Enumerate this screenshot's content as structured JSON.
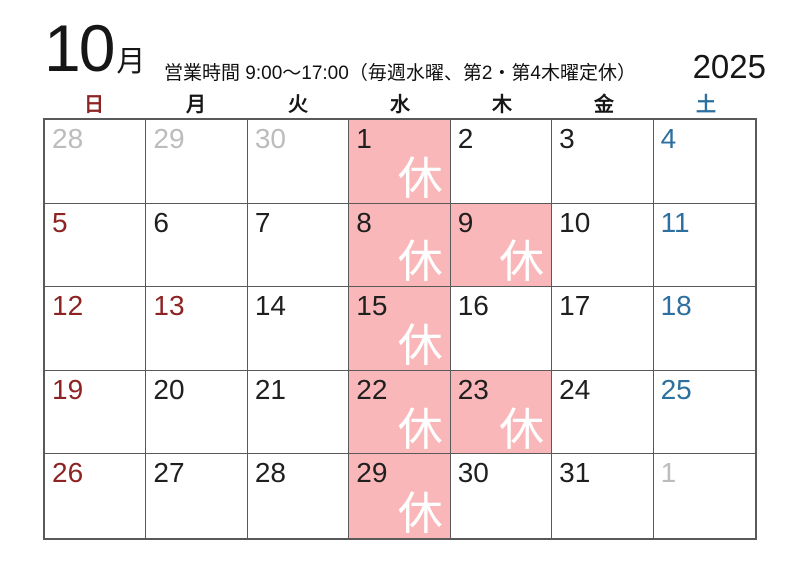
{
  "title": {
    "month_number": "10",
    "month_unit": "月",
    "year": "2025"
  },
  "business_hours": "営業時間 9:00～17:00（毎週水曜、第2・第4木曜定休）",
  "weekdays": [
    {
      "label": "日",
      "type": "sun"
    },
    {
      "label": "月",
      "type": "wd"
    },
    {
      "label": "火",
      "type": "wd"
    },
    {
      "label": "水",
      "type": "wd"
    },
    {
      "label": "木",
      "type": "wd"
    },
    {
      "label": "金",
      "type": "wd"
    },
    {
      "label": "土",
      "type": "sat"
    }
  ],
  "closed_mark": "休",
  "colors": {
    "sunday_holiday_red": "#8e2323",
    "saturday_blue": "#2d6f9e",
    "closed_cell_pink": "#f9b7b9",
    "other_month_gray": "#bcbcbc",
    "grid_border_gray": "#595959",
    "closed_mark_white": "#ffffff"
  },
  "weeks": [
    [
      {
        "day": "28",
        "other_month": true
      },
      {
        "day": "29",
        "other_month": true
      },
      {
        "day": "30",
        "other_month": true
      },
      {
        "day": "1",
        "closed": true
      },
      {
        "day": "2"
      },
      {
        "day": "3"
      },
      {
        "day": "4",
        "weekend": "sat"
      }
    ],
    [
      {
        "day": "5",
        "weekend": "sun"
      },
      {
        "day": "6"
      },
      {
        "day": "7"
      },
      {
        "day": "8",
        "closed": true
      },
      {
        "day": "9",
        "closed": true
      },
      {
        "day": "10"
      },
      {
        "day": "11",
        "weekend": "sat"
      }
    ],
    [
      {
        "day": "12",
        "weekend": "sun"
      },
      {
        "day": "13",
        "holiday": true
      },
      {
        "day": "14"
      },
      {
        "day": "15",
        "closed": true
      },
      {
        "day": "16"
      },
      {
        "day": "17"
      },
      {
        "day": "18",
        "weekend": "sat"
      }
    ],
    [
      {
        "day": "19",
        "weekend": "sun"
      },
      {
        "day": "20"
      },
      {
        "day": "21"
      },
      {
        "day": "22",
        "closed": true
      },
      {
        "day": "23",
        "closed": true
      },
      {
        "day": "24"
      },
      {
        "day": "25",
        "weekend": "sat"
      }
    ],
    [
      {
        "day": "26",
        "weekend": "sun"
      },
      {
        "day": "27"
      },
      {
        "day": "28"
      },
      {
        "day": "29",
        "closed": true
      },
      {
        "day": "30"
      },
      {
        "day": "31"
      },
      {
        "day": "1",
        "other_month": true
      }
    ]
  ]
}
